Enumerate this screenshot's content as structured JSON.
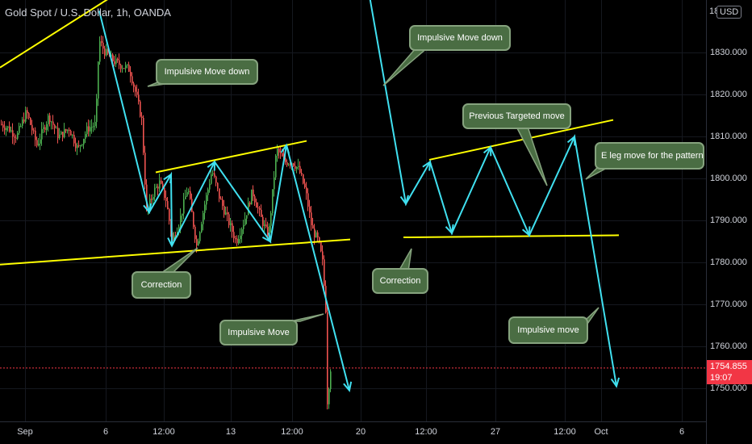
{
  "header": {
    "title": "Gold Spot / U.S. Dollar, 1h, OANDA",
    "currency_button": "USD",
    "top_clipped_digit": "18"
  },
  "colors": {
    "background": "#000000",
    "candle_up": "#26a69a",
    "candle_down": "#ef5350",
    "candle_green": "#4caf50",
    "trendline": "#ffff00",
    "arrow": "#40e0f0",
    "callout_fill": "#4a6d43",
    "callout_border": "#86a37e",
    "last_price_bg": "#f23645"
  },
  "last_price": {
    "value": "1754.855",
    "countdown": "19:07"
  },
  "chart_data": {
    "type": "candlestick",
    "title": "Gold Spot / U.S. Dollar, 1h, OANDA",
    "xlabel": "",
    "ylabel": "",
    "ylim": [
      1745,
      1852
    ],
    "y_ticks": [
      "1830.000",
      "1820.000",
      "1810.000",
      "1800.000",
      "1790.000",
      "1780.000",
      "1770.000",
      "1760.000",
      "1750.000"
    ],
    "x_ticks": [
      "Sep",
      "6",
      "12:00",
      "13",
      "12:00",
      "20",
      "12:00",
      "27",
      "12:00",
      "Oct",
      "6"
    ],
    "last_price": 1754.855,
    "price_path": [
      {
        "t": 0,
        "p": 1813
      },
      {
        "t": 10,
        "p": 1812
      },
      {
        "t": 20,
        "p": 1810
      },
      {
        "t": 32,
        "p": 1816
      },
      {
        "t": 45,
        "p": 1808
      },
      {
        "t": 60,
        "p": 1815
      },
      {
        "t": 72,
        "p": 1810
      },
      {
        "t": 85,
        "p": 1812
      },
      {
        "t": 96,
        "p": 1807
      },
      {
        "t": 108,
        "p": 1812
      },
      {
        "t": 118,
        "p": 1813
      },
      {
        "t": 122,
        "p": 1833
      },
      {
        "t": 130,
        "p": 1830
      },
      {
        "t": 140,
        "p": 1828
      },
      {
        "t": 150,
        "p": 1827
      },
      {
        "t": 160,
        "p": 1826
      },
      {
        "t": 168,
        "p": 1820
      },
      {
        "t": 175,
        "p": 1814
      },
      {
        "t": 181,
        "p": 1792
      },
      {
        "t": 190,
        "p": 1797
      },
      {
        "t": 197,
        "p": 1799
      },
      {
        "t": 205,
        "p": 1795
      },
      {
        "t": 213,
        "p": 1785
      },
      {
        "t": 222,
        "p": 1790
      },
      {
        "t": 232,
        "p": 1798
      },
      {
        "t": 243,
        "p": 1784
      },
      {
        "t": 252,
        "p": 1793
      },
      {
        "t": 262,
        "p": 1802
      },
      {
        "t": 272,
        "p": 1795
      },
      {
        "t": 282,
        "p": 1790
      },
      {
        "t": 292,
        "p": 1785
      },
      {
        "t": 302,
        "p": 1790
      },
      {
        "t": 312,
        "p": 1797
      },
      {
        "t": 322,
        "p": 1791
      },
      {
        "t": 332,
        "p": 1786
      },
      {
        "t": 342,
        "p": 1807
      },
      {
        "t": 352,
        "p": 1804
      },
      {
        "t": 362,
        "p": 1804
      },
      {
        "t": 370,
        "p": 1802
      },
      {
        "t": 378,
        "p": 1797
      },
      {
        "t": 386,
        "p": 1788
      },
      {
        "t": 394,
        "p": 1785
      },
      {
        "t": 399,
        "p": 1780
      },
      {
        "t": 403,
        "p": 1769
      },
      {
        "t": 405,
        "p": 1747
      },
      {
        "t": 409,
        "p": 1754.855
      }
    ],
    "trendlines": [
      {
        "from": {
          "t": 0,
          "p": 1826.5
        },
        "to": {
          "t": 205,
          "p": 1851.5
        }
      },
      {
        "from": {
          "t": 0,
          "p": 1779.5
        },
        "to": {
          "t": 434,
          "p": 1785.5
        }
      },
      {
        "from": {
          "t": 193,
          "p": 1801.5
        },
        "to": {
          "t": 380,
          "p": 1809
        }
      },
      {
        "from": {
          "t": 500,
          "p": 1786
        },
        "to": {
          "t": 767,
          "p": 1786.5
        }
      },
      {
        "from": {
          "t": 532,
          "p": 1804.5
        },
        "to": {
          "t": 760,
          "p": 1814
        }
      }
    ],
    "arrow_paths": [
      [
        {
          "t": 123,
          "p": 1840
        },
        {
          "t": 185,
          "p": 1792
        },
        {
          "t": 212,
          "p": 1801
        },
        {
          "t": 213,
          "p": 1784
        },
        {
          "t": 266,
          "p": 1804
        },
        {
          "t": 335,
          "p": 1785
        },
        {
          "t": 355,
          "p": 1808
        },
        {
          "t": 433,
          "p": 1749.5
        }
      ],
      [
        {
          "t": 458,
          "p": 1843.5
        },
        {
          "t": 503,
          "p": 1794
        },
        {
          "t": 533,
          "p": 1804
        },
        {
          "t": 560,
          "p": 1787
        },
        {
          "t": 608,
          "p": 1807.5
        },
        {
          "t": 656,
          "p": 1786.5
        },
        {
          "t": 712,
          "p": 1810
        },
        {
          "t": 764,
          "p": 1750.5
        }
      ]
    ]
  },
  "annotations": [
    {
      "id": "impulsive-move-down-1",
      "text": "Impulsive Move down"
    },
    {
      "id": "correction-1",
      "text": "Correction"
    },
    {
      "id": "impulsive-move-1",
      "text": "Impulsive Move"
    },
    {
      "id": "impulsive-move-down-2",
      "text": "Impulsive Move down"
    },
    {
      "id": "previous-targeted-move",
      "text": "Previous Targeted move"
    },
    {
      "id": "e-leg-move",
      "text": "E leg move for the pattern"
    },
    {
      "id": "correction-2",
      "text": "Correction"
    },
    {
      "id": "impulsive-move-2",
      "text": "Impulsive move"
    }
  ]
}
